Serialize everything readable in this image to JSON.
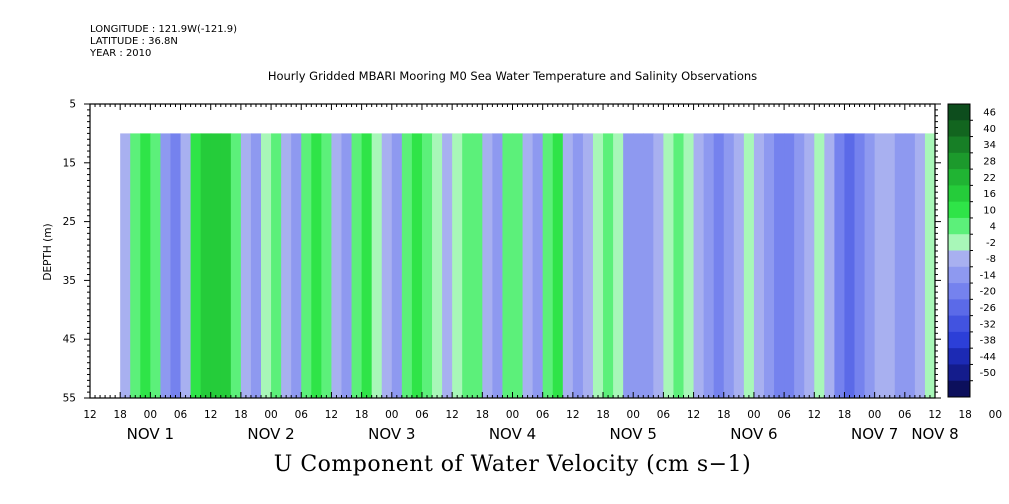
{
  "header": {
    "longitude": "LONGITUDE : 121.9W(-121.9)",
    "latitude": "LATITUDE : 36.8N",
    "year": "YEAR : 2010"
  },
  "title": "Hourly Gridded MBARI Mooring M0 Sea Water Temperature and Salinity Observations",
  "footer": "U Component of Water Velocity (cm s−1)",
  "chart_data": {
    "type": "heatmap",
    "title": "Hourly Gridded MBARI Mooring M0 Sea Water Temperature and Salinity Observations",
    "xlabel": "",
    "ylabel": "DEPTH (m)",
    "variable": "U Component of Water Velocity (cm s−1)",
    "x_range_hours": [
      0,
      168
    ],
    "data_start_hour": 6,
    "ylim": [
      5,
      55
    ],
    "y_inverted": true,
    "data_depth_top": 10,
    "y_ticks": [
      5,
      15,
      25,
      35,
      45,
      55
    ],
    "x_tick_labels": [
      "12",
      "18",
      "00",
      "06",
      "12",
      "18",
      "00",
      "06",
      "12",
      "18",
      "00",
      "06",
      "12",
      "18",
      "00",
      "06",
      "12",
      "18",
      "00",
      "06",
      "12",
      "18",
      "00",
      "06",
      "12",
      "18",
      "00",
      "06",
      "12",
      "18",
      "00",
      "06",
      "12"
    ],
    "day_labels": [
      {
        "label": "NOV  1",
        "hour": 12
      },
      {
        "label": "NOV  2",
        "hour": 36
      },
      {
        "label": "NOV  3",
        "hour": 60
      },
      {
        "label": "NOV  4",
        "hour": 84
      },
      {
        "label": "NOV  5",
        "hour": 108
      },
      {
        "label": "NOV  6",
        "hour": 132
      },
      {
        "label": "NOV  7",
        "hour": 156
      },
      {
        "label": "NOV  8",
        "hour": 168
      }
    ],
    "columns": [
      {
        "hour": 7,
        "value": -6
      },
      {
        "hour": 9,
        "value": 4
      },
      {
        "hour": 11,
        "value": 12
      },
      {
        "hour": 13,
        "value": 5
      },
      {
        "hour": 15,
        "value": -12
      },
      {
        "hour": 17,
        "value": -16
      },
      {
        "hour": 19,
        "value": -4
      },
      {
        "hour": 21,
        "value": 10
      },
      {
        "hour": 23,
        "value": 18
      },
      {
        "hour": 25,
        "value": 20
      },
      {
        "hour": 27,
        "value": 16
      },
      {
        "hour": 29,
        "value": 8
      },
      {
        "hour": 31,
        "value": -4
      },
      {
        "hour": 33,
        "value": -10
      },
      {
        "hour": 35,
        "value": 2
      },
      {
        "hour": 37,
        "value": 8
      },
      {
        "hour": 39,
        "value": -6
      },
      {
        "hour": 41,
        "value": -10
      },
      {
        "hour": 43,
        "value": 8
      },
      {
        "hour": 45,
        "value": 14
      },
      {
        "hour": 47,
        "value": 4
      },
      {
        "hour": 49,
        "value": -6
      },
      {
        "hour": 51,
        "value": -10
      },
      {
        "hour": 53,
        "value": 6
      },
      {
        "hour": 55,
        "value": 10
      },
      {
        "hour": 57,
        "value": 2
      },
      {
        "hour": 59,
        "value": -8
      },
      {
        "hour": 61,
        "value": -10
      },
      {
        "hour": 63,
        "value": 6
      },
      {
        "hour": 65,
        "value": 12
      },
      {
        "hour": 67,
        "value": 4
      },
      {
        "hour": 69,
        "value": -2
      },
      {
        "hour": 71,
        "value": -8
      },
      {
        "hour": 73,
        "value": 2
      },
      {
        "hour": 75,
        "value": 8
      },
      {
        "hour": 77,
        "value": 4
      },
      {
        "hour": 79,
        "value": -4
      },
      {
        "hour": 81,
        "value": -12
      },
      {
        "hour": 83,
        "value": 4
      },
      {
        "hour": 85,
        "value": 6
      },
      {
        "hour": 87,
        "value": -4
      },
      {
        "hour": 89,
        "value": -10
      },
      {
        "hour": 91,
        "value": 4
      },
      {
        "hour": 93,
        "value": 10
      },
      {
        "hour": 95,
        "value": -6
      },
      {
        "hour": 97,
        "value": -12
      },
      {
        "hour": 99,
        "value": -6
      },
      {
        "hour": 101,
        "value": 2
      },
      {
        "hour": 103,
        "value": 4
      },
      {
        "hour": 105,
        "value": -2
      },
      {
        "hour": 107,
        "value": -10
      },
      {
        "hour": 109,
        "value": -14
      },
      {
        "hour": 111,
        "value": -10
      },
      {
        "hour": 113,
        "value": -4
      },
      {
        "hour": 115,
        "value": 2
      },
      {
        "hour": 117,
        "value": 4
      },
      {
        "hour": 119,
        "value": -2
      },
      {
        "hour": 121,
        "value": -8
      },
      {
        "hour": 123,
        "value": -14
      },
      {
        "hour": 125,
        "value": -16
      },
      {
        "hour": 127,
        "value": -12
      },
      {
        "hour": 129,
        "value": -6
      },
      {
        "hour": 131,
        "value": 0
      },
      {
        "hour": 133,
        "value": -6
      },
      {
        "hour": 135,
        "value": -14
      },
      {
        "hour": 137,
        "value": -18
      },
      {
        "hour": 139,
        "value": -16
      },
      {
        "hour": 141,
        "value": -10
      },
      {
        "hour": 143,
        "value": -4
      },
      {
        "hour": 145,
        "value": 2
      },
      {
        "hour": 147,
        "value": -6
      },
      {
        "hour": 149,
        "value": -16
      },
      {
        "hour": 151,
        "value": -22
      },
      {
        "hour": 153,
        "value": -20
      },
      {
        "hour": 155,
        "value": -14
      },
      {
        "hour": 157,
        "value": -6
      },
      {
        "hour": 159,
        "value": -4
      },
      {
        "hour": 161,
        "value": -10
      },
      {
        "hour": 163,
        "value": -12
      },
      {
        "hour": 165,
        "value": -6
      },
      {
        "hour": 167,
        "value": 0
      }
    ],
    "colorbar": {
      "labels": [
        "46",
        "40",
        "34",
        "28",
        "22",
        "16",
        "10",
        "4",
        "-2",
        "-8",
        "-14",
        "-20",
        "-26",
        "-32",
        "-38",
        "-44",
        "-50"
      ],
      "colors": [
        "#0d4d1d",
        "#12651f",
        "#177f26",
        "#1c9a2c",
        "#20b433",
        "#25cc3a",
        "#2fe448",
        "#5cf07a",
        "#a8f7b8",
        "#a8b0f0",
        "#8e99f0",
        "#7582ee",
        "#5b6ae8",
        "#4253e0",
        "#2c3fd8",
        "#1c2ab4",
        "#141c8c",
        "#0c0f5c"
      ]
    }
  }
}
